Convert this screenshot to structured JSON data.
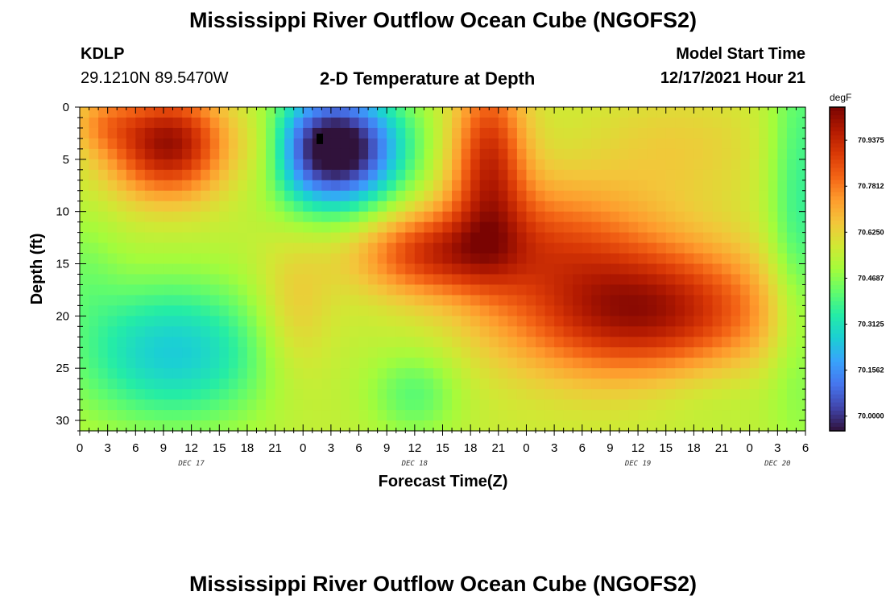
{
  "header": {
    "title": "Mississippi River Outflow Ocean Cube (NGOFS2)",
    "station": "KDLP",
    "coords": "29.1210N  89.5470W",
    "subtitle": "2-D Temperature at Depth",
    "model_label": "Model Start Time",
    "model_time": "12/17/2021 Hour 21"
  },
  "footer": {
    "title": "Mississippi River Outflow Ocean Cube (NGOFS2)"
  },
  "chart_data": {
    "type": "heatmap",
    "title": "2-D Temperature at Depth",
    "xlabel": "Forecast Time(Z)",
    "ylabel": "Depth (ft)",
    "xlim": [
      0,
      78
    ],
    "ylim": [
      31,
      0
    ],
    "x_ticks": [
      0,
      3,
      6,
      9,
      12,
      15,
      18,
      21,
      24,
      27,
      30,
      33,
      36,
      39,
      42,
      45,
      48,
      51,
      54,
      57,
      60,
      63,
      66,
      69,
      72,
      75,
      78
    ],
    "x_tick_labels": [
      "0",
      "3",
      "6",
      "9",
      "12",
      "15",
      "18",
      "21",
      "0",
      "3",
      "6",
      "9",
      "12",
      "15",
      "18",
      "21",
      "0",
      "3",
      "6",
      "9",
      "12",
      "15",
      "18",
      "21",
      "0",
      "3",
      "6"
    ],
    "day_labels": [
      {
        "label": "DEC 17",
        "x": 12
      },
      {
        "label": "DEC 18",
        "x": 36
      },
      {
        "label": "DEC 19",
        "x": 60
      },
      {
        "label": "DEC 20",
        "x": 75
      }
    ],
    "y_ticks": [
      0,
      5,
      10,
      15,
      20,
      25,
      30
    ],
    "colorbar": {
      "unit": "degF",
      "min": 69.95,
      "max": 71.05,
      "ticks": [
        70.9375,
        70.7812,
        70.625,
        70.4687,
        70.3125,
        70.1562,
        70.0
      ],
      "tick_labels": [
        "70.9375",
        "70.7812",
        "70.6250",
        "70.4687",
        "70.3125",
        "70.1562",
        "70.0000"
      ],
      "colormap": [
        "#30123b",
        "#4145ab",
        "#4675ed",
        "#39a2fc",
        "#1bcfd4",
        "#24eca6",
        "#61fc6c",
        "#a4fc3b",
        "#d1e834",
        "#f3c63a",
        "#fe9b2d",
        "#f36315",
        "#d93806",
        "#b11901",
        "#7a0402"
      ]
    },
    "field": {
      "description_of_structure": "temperature (degF) as a sum of anomalies over a base value; x in forecast hours, y in depth ft",
      "base": 70.56,
      "blobs": [
        {
          "x": 9.5,
          "y": 3.5,
          "sx": 4.5,
          "sy": 3.5,
          "amp": 0.45
        },
        {
          "x": 2.5,
          "y": 1.5,
          "sx": 2.5,
          "sy": 2.0,
          "amp": 0.12
        },
        {
          "x": 27.5,
          "y": 4.0,
          "sx": 5.0,
          "sy": 4.0,
          "amp": -0.7
        },
        {
          "x": 20.0,
          "y": 4.0,
          "sx": 2.2,
          "sy": 3.0,
          "amp": 0.12
        },
        {
          "x": 44.0,
          "y": 5.0,
          "sx": 2.8,
          "sy": 6.0,
          "amp": 0.35
        },
        {
          "x": 38.0,
          "y": 14.0,
          "sx": 6.0,
          "sy": 2.8,
          "amp": 0.3
        },
        {
          "x": 60.0,
          "y": 19.5,
          "sx": 10.0,
          "sy": 4.5,
          "amp": 0.45
        },
        {
          "x": 50.0,
          "y": 12.0,
          "sx": 8.0,
          "sy": 4.0,
          "amp": 0.2
        },
        {
          "x": 64.0,
          "y": 4.0,
          "sx": 7.0,
          "sy": 4.0,
          "amp": 0.08
        },
        {
          "x": 10.0,
          "y": 23.5,
          "sx": 8.0,
          "sy": 5.0,
          "amp": -0.3
        },
        {
          "x": 36.0,
          "y": 27.5,
          "sx": 3.5,
          "sy": 3.0,
          "amp": -0.15
        },
        {
          "x": 68.0,
          "y": 27.0,
          "sx": 6.0,
          "sy": 3.0,
          "amp": -0.05
        },
        {
          "x": 77.5,
          "y": 10.0,
          "sx": 2.5,
          "sy": 14.0,
          "amp": -0.2
        },
        {
          "x": 23.0,
          "y": 20.0,
          "sx": 3.0,
          "sy": 5.0,
          "amp": 0.12
        },
        {
          "x": 0.0,
          "y": 15.0,
          "sx": 3.0,
          "sy": 4.0,
          "amp": -0.08
        }
      ],
      "min_cell_marker": {
        "x": 25.8,
        "y": 3.0
      }
    }
  }
}
